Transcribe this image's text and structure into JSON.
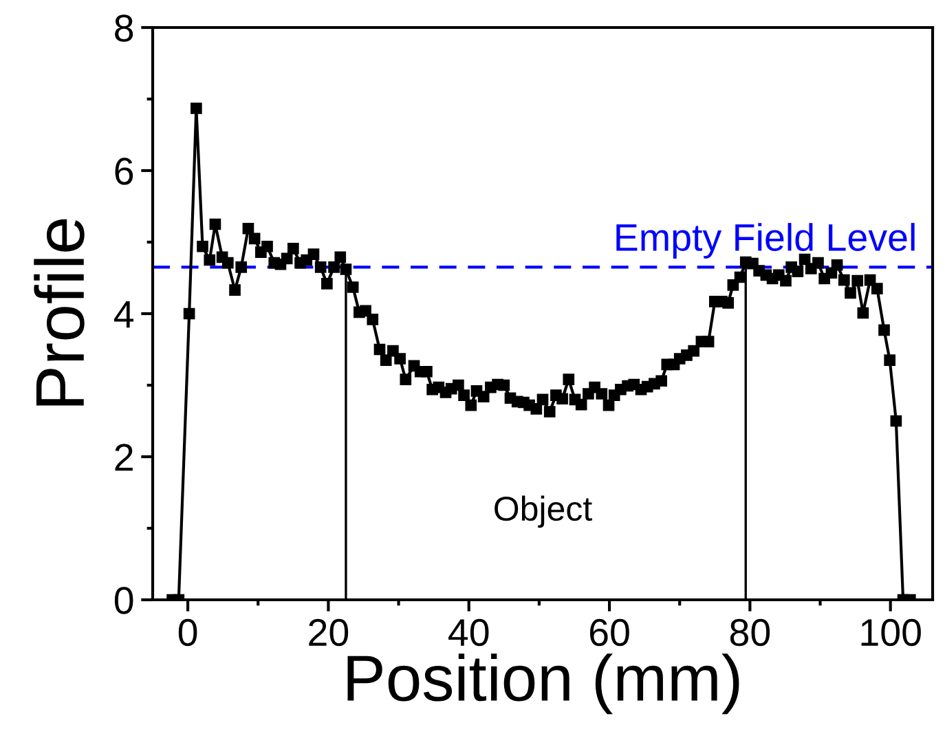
{
  "chart_data": {
    "type": "line",
    "xlabel": "Position (mm)",
    "ylabel": "Profile",
    "xlim": [
      -5,
      106
    ],
    "ylim": [
      0,
      8
    ],
    "xticks": [
      0,
      {
        "value": 10,
        "label": null
      },
      20,
      {
        "value": 30,
        "label": null
      },
      40,
      {
        "value": 50,
        "label": null
      },
      60,
      {
        "value": 70,
        "label": null
      },
      80,
      {
        "value": 90,
        "label": null
      },
      100
    ],
    "yticks": [
      0,
      {
        "value": 1,
        "label": null
      },
      2,
      {
        "value": 3,
        "label": null
      },
      4,
      {
        "value": 5,
        "label": null
      },
      6,
      {
        "value": 7,
        "label": null
      },
      8
    ],
    "marker": "square",
    "line_style": "solid",
    "grid": false,
    "legend": false,
    "ref_lines": [
      {
        "axis": "y",
        "value": 4.65,
        "label": "Empty Field Level",
        "color": "#0000ff",
        "line_style": "dashed"
      },
      {
        "axis": "x",
        "value": 22.5,
        "label": null,
        "color": "#000000",
        "line_style": "solid"
      },
      {
        "axis": "x",
        "value": 79.4,
        "label": null,
        "color": "#000000",
        "line_style": "solid"
      }
    ],
    "annotations": [
      "Object"
    ],
    "series": [
      {
        "color": "#000000",
        "x": [
          -2.2,
          -1.3,
          0.2,
          1.2,
          2.1,
          3.1,
          3.9,
          4.9,
          5.7,
          6.7,
          7.6,
          8.6,
          9.5,
          10.4,
          11.3,
          12.3,
          13.2,
          14.1,
          15.0,
          16.0,
          16.9,
          17.9,
          18.9,
          19.8,
          20.8,
          21.7,
          22.5,
          23.5,
          24.4,
          25.3,
          26.3,
          27.3,
          28.2,
          29.2,
          30.2,
          31.0,
          32.2,
          33.1,
          34.0,
          34.8,
          35.7,
          36.7,
          37.5,
          38.5,
          39.3,
          40.3,
          41.1,
          42.1,
          43.1,
          44.1,
          45.0,
          45.9,
          46.9,
          47.8,
          48.6,
          49.6,
          50.5,
          51.5,
          52.4,
          53.3,
          54.2,
          55.1,
          56.0,
          57.0,
          57.9,
          58.9,
          59.9,
          60.7,
          61.6,
          62.6,
          63.5,
          64.5,
          65.4,
          66.4,
          67.4,
          68.2,
          69.2,
          70.0,
          71.0,
          72.0,
          73.1,
          74.1,
          75.0,
          76.0,
          76.9,
          77.6,
          78.6,
          79.4,
          80.4,
          81.3,
          82.3,
          83.2,
          84.1,
          85.1,
          85.9,
          86.8,
          87.8,
          88.7,
          89.7,
          90.6,
          91.6,
          92.4,
          93.4,
          94.3,
          95.3,
          96.1,
          97.1,
          98.1,
          99.1,
          99.9,
          100.8,
          101.8,
          102.8
        ],
        "values": [
          0,
          0,
          4.0,
          6.87,
          4.94,
          4.75,
          5.25,
          4.79,
          4.71,
          4.33,
          4.65,
          5.19,
          5.05,
          4.86,
          4.94,
          4.71,
          4.69,
          4.77,
          4.91,
          4.71,
          4.75,
          4.83,
          4.65,
          4.42,
          4.65,
          4.79,
          4.62,
          4.37,
          4.02,
          4.04,
          3.92,
          3.5,
          3.35,
          3.48,
          3.37,
          3.08,
          3.27,
          3.19,
          3.19,
          2.94,
          2.97,
          2.9,
          2.95,
          3.0,
          2.86,
          2.72,
          2.92,
          2.84,
          2.97,
          3.01,
          3.0,
          2.82,
          2.77,
          2.76,
          2.72,
          2.67,
          2.8,
          2.63,
          2.86,
          2.81,
          3.08,
          2.8,
          2.73,
          2.88,
          2.97,
          2.88,
          2.72,
          2.86,
          2.94,
          2.99,
          3.01,
          2.94,
          2.98,
          3.02,
          3.06,
          3.29,
          3.29,
          3.37,
          3.42,
          3.48,
          3.61,
          3.61,
          4.17,
          4.17,
          4.15,
          4.4,
          4.51,
          4.72,
          4.7,
          4.6,
          4.54,
          4.49,
          4.54,
          4.46,
          4.65,
          4.59,
          4.76,
          4.63,
          4.71,
          4.49,
          4.57,
          4.68,
          4.47,
          4.29,
          4.46,
          4.01,
          4.47,
          4.35,
          3.77,
          3.35,
          2.5,
          0,
          0
        ]
      }
    ]
  }
}
